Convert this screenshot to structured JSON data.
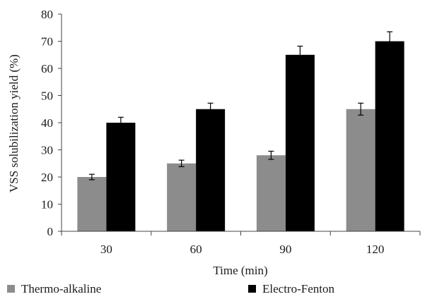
{
  "chart_data": {
    "type": "bar",
    "categories": [
      "30",
      "60",
      "90",
      "120"
    ],
    "series": [
      {
        "name": "Thermo-alkaline",
        "values": [
          20,
          25,
          28,
          45
        ],
        "errors": [
          1,
          1.2,
          1.5,
          2.2
        ],
        "color": "#8c8c8c"
      },
      {
        "name": "Electro-Fenton",
        "values": [
          40,
          45,
          65,
          70
        ],
        "errors": [
          2,
          2.2,
          3.2,
          3.5
        ],
        "color": "#000000"
      }
    ],
    "title": "",
    "xlabel": "Time (min)",
    "ylabel": "VSS solubilization yield (%)",
    "ylim": [
      0,
      80
    ],
    "yticks": [
      "0",
      "10",
      "20",
      "30",
      "40",
      "50",
      "60",
      "70",
      "80"
    ],
    "grid": false,
    "legend_position": "bottom"
  }
}
